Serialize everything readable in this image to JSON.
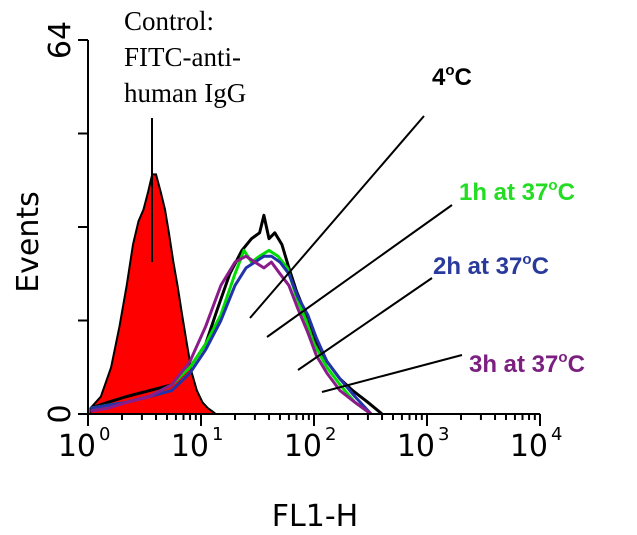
{
  "chart_data": {
    "type": "area",
    "xlabel": "FL1-H",
    "ylabel": "Events",
    "xscale": "log",
    "xlim": [
      1,
      10000
    ],
    "ylim": [
      0,
      64
    ],
    "x_ticks": [
      {
        "base": "10",
        "exp": "0",
        "value": 1
      },
      {
        "base": "10",
        "exp": "1",
        "value": 10
      },
      {
        "base": "10",
        "exp": "2",
        "value": 100
      },
      {
        "base": "10",
        "exp": "3",
        "value": 1000
      },
      {
        "base": "10",
        "exp": "4",
        "value": 10000
      }
    ],
    "y_ticks": [
      {
        "label": "0",
        "value": 0
      },
      {
        "label": "64",
        "value": 64
      }
    ],
    "grid": false,
    "series": [
      {
        "color": "#ff0000",
        "fill": true,
        "x": [
          1.05,
          1.3,
          1.6,
          1.9,
          2.2,
          2.5,
          2.8,
          3.1,
          3.4,
          3.7,
          4.0,
          4.4,
          4.8,
          5.2,
          5.7,
          6.2,
          6.8,
          7.5,
          8.3,
          9.2,
          10.3,
          11.5,
          12.5,
          13.5
        ],
        "y": [
          1,
          3,
          8,
          15,
          22,
          29,
          33,
          35,
          38,
          41,
          41,
          38,
          35,
          31,
          26,
          22,
          17,
          12,
          7,
          4,
          2,
          1,
          0.5,
          0
        ]
      },
      {
        "color": "#000000",
        "fill": false,
        "x": [
          1.05,
          1.5,
          2.2,
          3.5,
          5.5,
          8,
          11,
          14,
          18,
          23,
          28,
          33,
          36,
          40,
          45,
          52,
          60,
          70,
          85,
          100,
          130,
          170,
          220,
          300,
          400
        ],
        "y": [
          1,
          2,
          3,
          4,
          5,
          8,
          12,
          18,
          24,
          28,
          30,
          31,
          34,
          30,
          31,
          29,
          25,
          21,
          17,
          13,
          9,
          6,
          4,
          2,
          0
        ]
      },
      {
        "color": "#00dd00",
        "fill": false,
        "x": [
          1.05,
          1.5,
          2.2,
          3.5,
          5.5,
          8,
          11,
          15,
          20,
          24,
          28,
          33,
          40,
          48,
          58,
          70,
          85,
          100,
          130,
          170,
          230,
          320
        ],
        "y": [
          1,
          1.5,
          2,
          3,
          5,
          8,
          12,
          17,
          24,
          28,
          26,
          27,
          28,
          27,
          25,
          20,
          16,
          12,
          8,
          5,
          2,
          0
        ]
      },
      {
        "color": "#2233aa",
        "fill": false,
        "x": [
          1.05,
          1.5,
          2.2,
          3.5,
          5.5,
          8,
          11,
          15,
          20,
          25,
          30,
          36,
          42,
          50,
          60,
          72,
          88,
          105,
          130,
          170,
          230,
          320
        ],
        "y": [
          1,
          1.5,
          2,
          3,
          4,
          7,
          11,
          16,
          22,
          25,
          26,
          27,
          27,
          26,
          24,
          20,
          17,
          13,
          9,
          6,
          3,
          0
        ]
      },
      {
        "color": "#8b1a8b",
        "fill": false,
        "x": [
          1.05,
          1.5,
          2.2,
          3.5,
          5.5,
          8,
          11,
          15,
          20,
          25,
          30,
          36,
          42,
          50,
          60,
          72,
          88,
          105,
          130,
          170,
          230,
          320
        ],
        "y": [
          0.5,
          1,
          2,
          3,
          5,
          9,
          15,
          22,
          26,
          27,
          26,
          25,
          26,
          24,
          22,
          18,
          14,
          10,
          7,
          4,
          2,
          0
        ]
      }
    ],
    "annotations": [
      {
        "lines": [
          "Control:",
          "FITC-anti-",
          "human IgG"
        ],
        "color": "#000000",
        "style": "serif"
      },
      {
        "text": "4",
        "sup": "o",
        "suffix": "C",
        "color": "#000000",
        "style": "bold"
      },
      {
        "text": "1h at 37",
        "sup": "o",
        "suffix": "C",
        "color": "#22dd22",
        "style": "bold"
      },
      {
        "text": "2h at 37",
        "sup": "o",
        "suffix": "C",
        "color": "#2a3a9c",
        "style": "bold"
      },
      {
        "text": "3h at 37",
        "sup": "o",
        "suffix": "C",
        "color": "#7b2080",
        "style": "bold"
      }
    ]
  }
}
